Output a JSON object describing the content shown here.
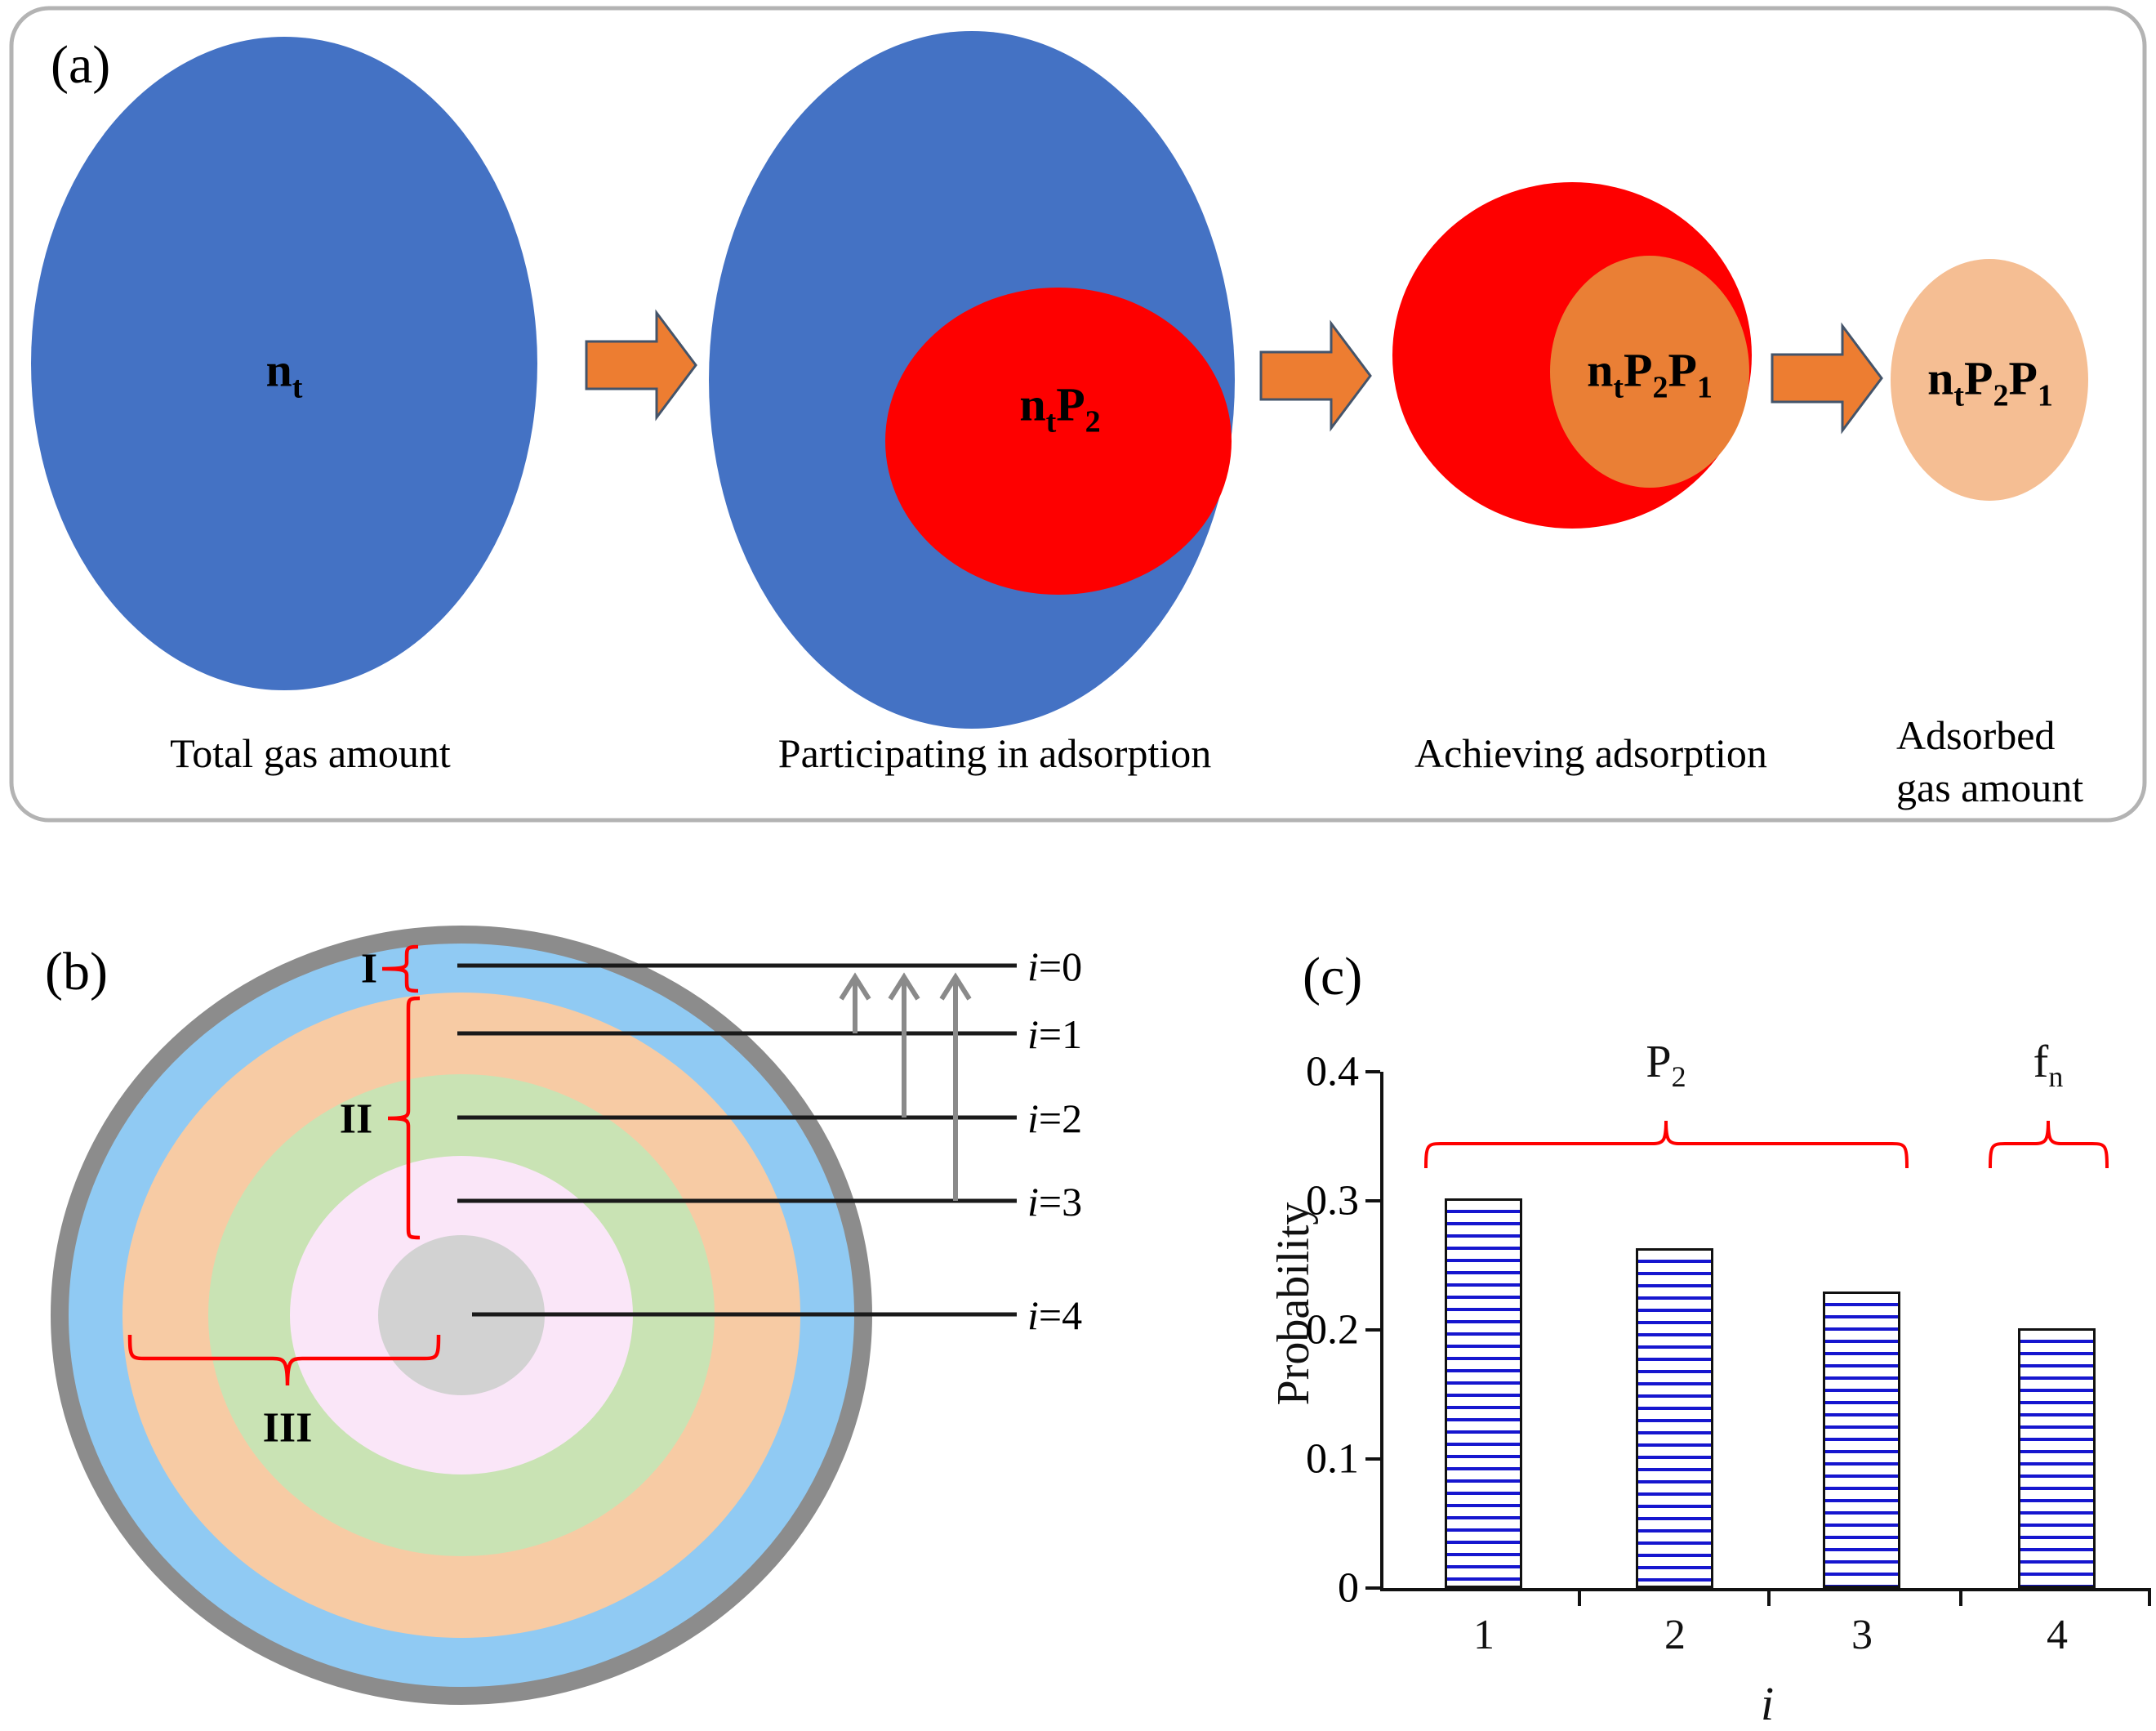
{
  "colors": {
    "stage_blue": "#4472C4",
    "stage_red": "#FE0000",
    "arrow_fill": "#ED7D31",
    "arrow_border": "#44546A",
    "achieved_orange": "#EA7F35",
    "adsorbed_peach": "#F5BE93",
    "shell_border_gray": "#8C8C8C",
    "shell_blue": "#90CAF3",
    "shell_orange": "#F7CBA4",
    "shell_green": "#C9E3B4",
    "shell_pink": "#FAE6F8",
    "shell_core_gray": "#D2D2D2",
    "level_line": "#1A1A1A",
    "transition_arrow_gray": "#8A8A8A",
    "brace_red": "#FF0000",
    "bar_stripe_blue": "#1616CF",
    "panel_border": "#B3B3B3"
  },
  "panel_a": {
    "tag": "(a)",
    "stage1": {
      "b1": "n",
      "s1": "t",
      "caption": "Total gas amount"
    },
    "stage2": {
      "b1": "n",
      "s1": "t",
      "b2": "P",
      "s2": "2",
      "caption": "Participating in adsorption"
    },
    "stage3": {
      "b1": "n",
      "s1": "t",
      "b2": "P",
      "s2": "2",
      "b3": "P",
      "s3": "1",
      "caption": "Achieving adsorption"
    },
    "stage4": {
      "b1": "n",
      "s1": "t",
      "b2": "P",
      "s2": "2",
      "b3": "P",
      "s3": "1",
      "caption_line1": "Adsorbed",
      "caption_line2": "gas amount"
    }
  },
  "panel_b": {
    "tag": "(b)",
    "levels": [
      {
        "var": "i",
        "eq": "=0"
      },
      {
        "var": "i",
        "eq": "=1"
      },
      {
        "var": "i",
        "eq": "=2"
      },
      {
        "var": "i",
        "eq": "=3"
      },
      {
        "var": "i",
        "eq": "=4"
      }
    ],
    "zones": {
      "one": "I",
      "two": "II",
      "three": "III"
    }
  },
  "panel_c": {
    "tag": "(c)",
    "ylabel": "Probability",
    "xlabel": "i",
    "yticks": [
      "0.4",
      "0.3",
      "0.2",
      "0.1",
      "0"
    ],
    "xticks": [
      "1",
      "2",
      "3",
      "4"
    ],
    "brace_p": {
      "base": "P",
      "sub": "2"
    },
    "brace_f": {
      "base": "f",
      "sub": "n"
    }
  },
  "chart_data": {
    "type": "bar",
    "title": "",
    "categories": [
      "1",
      "2",
      "3",
      "4"
    ],
    "values": [
      0.302,
      0.263,
      0.23,
      0.201
    ],
    "xlabel": "i",
    "ylabel": "Probability",
    "ylim": [
      0,
      0.4
    ],
    "ytick_step": 0.1,
    "grid": false,
    "legend": "none",
    "bar_fill": "white with horizontal blue hatch stripes",
    "bar_edge": "black",
    "annotations": [
      {
        "text": "P2",
        "type": "red brace",
        "span_categories": [
          "1",
          "2",
          "3"
        ]
      },
      {
        "text": "fn",
        "type": "red brace",
        "span_categories": [
          "4"
        ]
      }
    ]
  }
}
